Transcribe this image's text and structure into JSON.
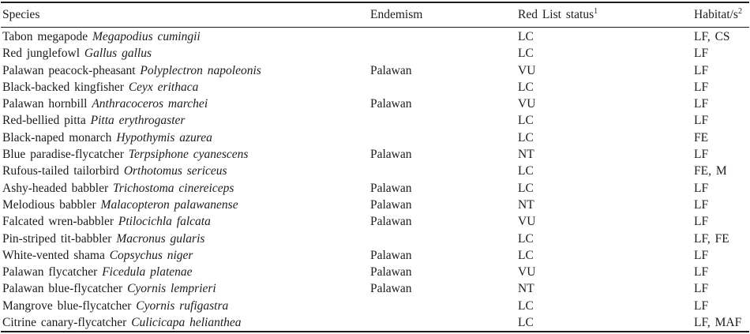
{
  "table": {
    "columns": [
      {
        "label": "Species",
        "sup": ""
      },
      {
        "label": "Endemism",
        "sup": ""
      },
      {
        "label": "Red List status",
        "sup": "1"
      },
      {
        "label": "Habitat/s",
        "sup": "2"
      }
    ],
    "rows": [
      {
        "common": "Tabon megapode",
        "scientific": "Megapodius cumingii",
        "endemism": "",
        "red_list": "LC",
        "habitats": "LF, CS"
      },
      {
        "common": "Red junglefowl",
        "scientific": "Gallus gallus",
        "endemism": "",
        "red_list": "LC",
        "habitats": "LF"
      },
      {
        "common": "Palawan peacock-pheasant",
        "scientific": "Polyplectron napoleonis",
        "endemism": "Palawan",
        "red_list": "VU",
        "habitats": "LF"
      },
      {
        "common": "Black-backed kingfisher",
        "scientific": "Ceyx erithaca",
        "endemism": "",
        "red_list": "LC",
        "habitats": "LF"
      },
      {
        "common": "Palawan hornbill",
        "scientific": "Anthracoceros marchei",
        "endemism": "Palawan",
        "red_list": "VU",
        "habitats": "LF"
      },
      {
        "common": "Red-bellied pitta",
        "scientific": "Pitta erythrogaster",
        "endemism": "",
        "red_list": "LC",
        "habitats": "LF"
      },
      {
        "common": "Black-naped monarch",
        "scientific": "Hypothymis azurea",
        "endemism": "",
        "red_list": "LC",
        "habitats": "FE"
      },
      {
        "common": "Blue paradise-flycatcher",
        "scientific": "Terpsiphone cyanescens",
        "endemism": "Palawan",
        "red_list": "NT",
        "habitats": "LF"
      },
      {
        "common": "Rufous-tailed tailorbird",
        "scientific": "Orthotomus sericeus",
        "endemism": "",
        "red_list": "LC",
        "habitats": "FE, M"
      },
      {
        "common": "Ashy-headed babbler",
        "scientific": "Trichostoma cinereiceps",
        "endemism": "Palawan",
        "red_list": "LC",
        "habitats": "LF"
      },
      {
        "common": "Melodious babbler",
        "scientific": "Malacopteron palawanense",
        "endemism": "Palawan",
        "red_list": "NT",
        "habitats": "LF"
      },
      {
        "common": "Falcated wren-babbler",
        "scientific": "Ptilocichla falcata",
        "endemism": "Palawan",
        "red_list": "VU",
        "habitats": "LF"
      },
      {
        "common": "Pin-striped tit-babbler",
        "scientific": "Macronus gularis",
        "endemism": "",
        "red_list": "LC",
        "habitats": "LF, FE"
      },
      {
        "common": "White-vented shama",
        "scientific": "Copsychus niger",
        "endemism": "Palawan",
        "red_list": "LC",
        "habitats": "LF"
      },
      {
        "common": "Palawan flycatcher",
        "scientific": "Ficedula platenae",
        "endemism": "Palawan",
        "red_list": "VU",
        "habitats": "LF"
      },
      {
        "common": "Palawan blue-flycatcher",
        "scientific": "Cyornis lemprieri",
        "endemism": "Palawan",
        "red_list": "NT",
        "habitats": "LF"
      },
      {
        "common": "Mangrove blue-flycatcher",
        "scientific": "Cyornis rufigastra",
        "endemism": "",
        "red_list": "LC",
        "habitats": "LF"
      },
      {
        "common": "Citrine canary-flycatcher",
        "scientific": "Culicicapa helianthea",
        "endemism": "",
        "red_list": "LC",
        "habitats": "LF, MAF"
      }
    ]
  }
}
